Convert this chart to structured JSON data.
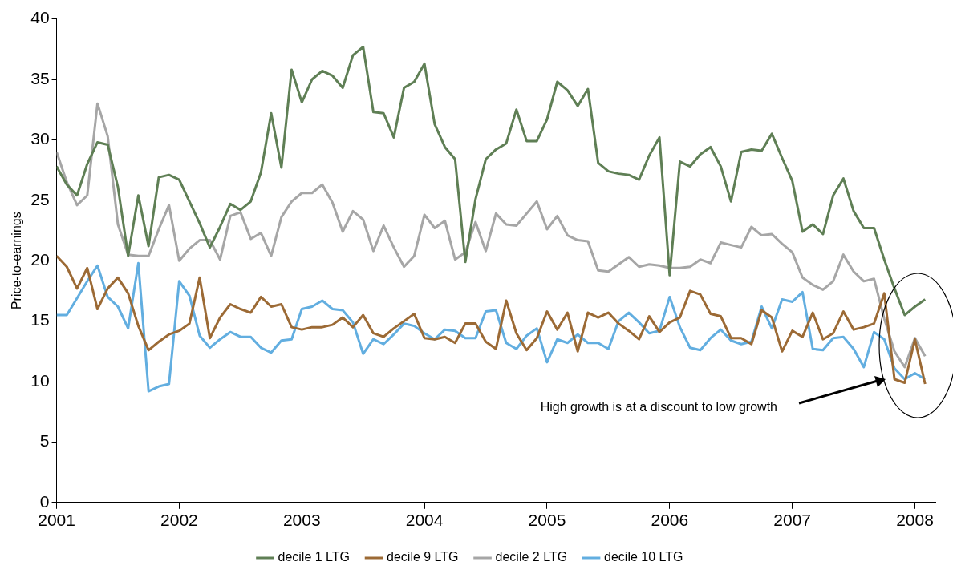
{
  "chart_data": {
    "type": "line",
    "ylabel": "Price-to-earnings",
    "x": [
      "2001-01",
      "2001-02",
      "2001-03",
      "2001-04",
      "2001-05",
      "2001-06",
      "2001-07",
      "2001-08",
      "2001-09",
      "2001-10",
      "2001-11",
      "2001-12",
      "2002-01",
      "2002-02",
      "2002-03",
      "2002-04",
      "2002-05",
      "2002-06",
      "2002-07",
      "2002-08",
      "2002-09",
      "2002-10",
      "2002-11",
      "2002-12",
      "2003-01",
      "2003-02",
      "2003-03",
      "2003-04",
      "2003-05",
      "2003-06",
      "2003-07",
      "2003-08",
      "2003-09",
      "2003-10",
      "2003-11",
      "2003-12",
      "2004-01",
      "2004-02",
      "2004-03",
      "2004-04",
      "2004-05",
      "2004-06",
      "2004-07",
      "2004-08",
      "2004-09",
      "2004-10",
      "2004-11",
      "2004-12",
      "2005-01",
      "2005-02",
      "2005-03",
      "2005-04",
      "2005-05",
      "2005-06",
      "2005-07",
      "2005-08",
      "2005-09",
      "2005-10",
      "2005-11",
      "2005-12",
      "2006-01",
      "2006-02",
      "2006-03",
      "2006-04",
      "2006-05",
      "2006-06",
      "2006-07",
      "2006-08",
      "2006-09",
      "2006-10",
      "2006-11",
      "2006-12",
      "2007-01",
      "2007-02",
      "2007-03",
      "2007-04",
      "2007-05",
      "2007-06",
      "2007-07",
      "2007-08",
      "2007-09",
      "2007-10",
      "2007-11",
      "2007-12",
      "2008-01",
      "2008-02"
    ],
    "series": [
      {
        "name": "decile 1 LTG",
        "color": "#5f7f55",
        "values": [
          27.8,
          26.3,
          25.4,
          28.0,
          29.8,
          29.6,
          26.1,
          20.4,
          25.4,
          21.2,
          26.9,
          27.1,
          26.7,
          24.9,
          23.1,
          21.1,
          22.8,
          24.7,
          24.2,
          24.9,
          27.3,
          32.2,
          27.7,
          35.8,
          33.1,
          35.0,
          35.7,
          35.3,
          34.3,
          37.0,
          37.7,
          32.3,
          32.2,
          30.2,
          34.3,
          34.8,
          36.3,
          31.3,
          29.4,
          28.4,
          19.9,
          25.1,
          28.4,
          29.2,
          29.7,
          32.5,
          29.9,
          29.9,
          31.7,
          34.8,
          34.1,
          32.8,
          34.2,
          28.1,
          27.4,
          27.2,
          27.1,
          26.7,
          28.7,
          30.2,
          18.8,
          28.2,
          27.8,
          28.8,
          29.4,
          27.8,
          24.9,
          29.0,
          29.2,
          29.1,
          30.5,
          28.5,
          26.6,
          22.4,
          23.0,
          22.2,
          25.4,
          26.8,
          24.1,
          22.7,
          22.7,
          20.1,
          17.7,
          15.5,
          16.2,
          16.8
        ]
      },
      {
        "name": "decile 9 LTG",
        "color": "#9c6a35",
        "values": [
          20.4,
          19.5,
          17.7,
          19.4,
          16.0,
          17.7,
          18.6,
          17.3,
          14.6,
          12.6,
          13.3,
          13.9,
          14.2,
          14.8,
          18.6,
          13.6,
          15.3,
          16.4,
          16.0,
          15.7,
          17.0,
          16.2,
          16.4,
          14.5,
          14.3,
          14.5,
          14.5,
          14.7,
          15.3,
          14.5,
          15.5,
          14.0,
          13.7,
          14.4,
          15.0,
          15.6,
          13.6,
          13.5,
          13.7,
          13.2,
          14.8,
          14.8,
          13.3,
          12.7,
          16.7,
          14.0,
          12.6,
          13.6,
          15.8,
          14.3,
          15.7,
          12.5,
          15.7,
          15.3,
          15.7,
          14.8,
          14.2,
          13.5,
          15.4,
          14.1,
          14.9,
          15.3,
          17.5,
          17.2,
          15.6,
          15.4,
          13.6,
          13.6,
          13.1,
          15.9,
          15.3,
          12.5,
          14.2,
          13.7,
          15.7,
          13.5,
          14.0,
          15.8,
          14.3,
          14.5,
          14.8,
          17.3,
          10.2,
          9.9,
          13.5,
          9.8
        ]
      },
      {
        "name": "decile 2 LTG",
        "color": "#a6a6a6",
        "values": [
          29.0,
          26.5,
          24.6,
          25.4,
          33.0,
          30.3,
          23.0,
          20.5,
          20.4,
          20.4,
          22.6,
          24.6,
          20.0,
          21.0,
          21.7,
          21.7,
          20.1,
          23.7,
          24.0,
          21.8,
          22.3,
          20.4,
          23.6,
          24.9,
          25.6,
          25.6,
          26.3,
          24.8,
          22.4,
          24.1,
          23.4,
          20.8,
          22.9,
          21.1,
          19.5,
          20.4,
          23.8,
          22.7,
          23.3,
          20.1,
          20.7,
          23.2,
          20.8,
          23.9,
          23.0,
          22.9,
          23.9,
          24.9,
          22.6,
          23.7,
          22.1,
          21.7,
          21.6,
          19.2,
          19.1,
          19.7,
          20.3,
          19.5,
          19.7,
          19.6,
          19.4,
          19.4,
          19.5,
          20.1,
          19.8,
          21.5,
          21.3,
          21.1,
          22.8,
          22.1,
          22.2,
          21.4,
          20.7,
          18.6,
          18.0,
          17.6,
          18.3,
          20.5,
          19.1,
          18.3,
          18.5,
          15.2,
          12.5,
          11.2,
          13.6,
          12.1
        ]
      },
      {
        "name": "decile 10 LTG",
        "color": "#62aee0",
        "values": [
          15.5,
          15.5,
          16.9,
          18.3,
          19.6,
          17.0,
          16.2,
          14.4,
          19.8,
          9.2,
          9.6,
          9.8,
          18.3,
          17.1,
          13.8,
          12.8,
          13.5,
          14.1,
          13.7,
          13.7,
          12.8,
          12.4,
          13.4,
          13.5,
          16.0,
          16.2,
          16.7,
          16.0,
          15.9,
          14.9,
          12.3,
          13.5,
          13.1,
          13.9,
          14.8,
          14.6,
          14.0,
          13.5,
          14.3,
          14.2,
          13.6,
          13.6,
          15.8,
          15.9,
          13.2,
          12.7,
          13.8,
          14.4,
          11.6,
          13.5,
          13.2,
          13.9,
          13.2,
          13.2,
          12.7,
          15.0,
          15.7,
          14.9,
          14.0,
          14.2,
          17.0,
          14.5,
          12.8,
          12.6,
          13.6,
          14.3,
          13.4,
          13.1,
          13.3,
          16.2,
          14.4,
          16.8,
          16.6,
          17.4,
          12.7,
          12.6,
          13.6,
          13.7,
          12.7,
          11.2,
          14.1,
          13.5,
          11.1,
          10.2,
          10.7,
          10.2
        ]
      }
    ],
    "xlim": [
      "2001",
      "2008-03"
    ],
    "xticks": [
      "2001",
      "2002",
      "2003",
      "2004",
      "2005",
      "2006",
      "2007",
      "2008"
    ],
    "ylim": [
      0,
      40
    ],
    "yticks": [
      0,
      5,
      10,
      15,
      20,
      25,
      30,
      35,
      40
    ],
    "grid": false,
    "legend": "bottom",
    "marker": "none",
    "line_style": "solid",
    "annotations": [
      "High growth is at a discount to low growth"
    ]
  }
}
